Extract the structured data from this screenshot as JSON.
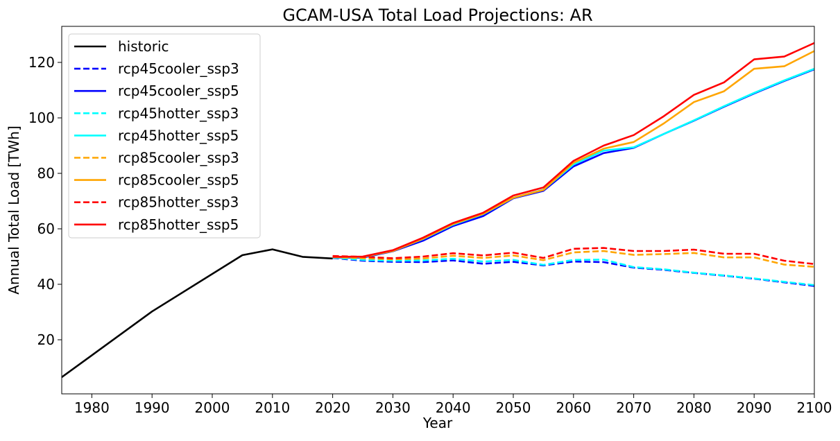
{
  "chart_data": {
    "type": "line",
    "title": "GCAM-USA Total Load Projections: AR",
    "xlabel": "Year",
    "ylabel": "Annual Total Load [TWh]",
    "xlim": [
      1975,
      2100
    ],
    "ylim": [
      0.5,
      133
    ],
    "xticks": [
      1980,
      1990,
      2000,
      2010,
      2020,
      2030,
      2040,
      2050,
      2060,
      2070,
      2080,
      2090,
      2100
    ],
    "yticks": [
      20,
      40,
      60,
      80,
      100,
      120
    ],
    "grid": false,
    "legend_position": "top-left",
    "series": [
      {
        "name": "historic",
        "color": "#000000",
        "dash": "solid",
        "x": [
          1975,
          1990,
          2005,
          2010,
          2015,
          2020
        ],
        "y": [
          6.5,
          30.2,
          50.5,
          52.6,
          49.9,
          49.3
        ]
      },
      {
        "name": "rcp45cooler_ssp3",
        "color": "#0000ff",
        "dash": "dashed",
        "x": [
          2020,
          2025,
          2030,
          2035,
          2040,
          2045,
          2050,
          2055,
          2060,
          2065,
          2070,
          2075,
          2080,
          2085,
          2090,
          2095,
          2100
        ],
        "y": [
          49.5,
          48.5,
          48.1,
          48.0,
          48.6,
          47.4,
          48.1,
          46.8,
          48.2,
          48.0,
          46.0,
          45.2,
          44.1,
          43.1,
          42.0,
          40.7,
          39.4
        ]
      },
      {
        "name": "rcp45cooler_ssp5",
        "color": "#0000ff",
        "dash": "solid",
        "x": [
          2020,
          2025,
          2030,
          2035,
          2040,
          2045,
          2050,
          2055,
          2060,
          2065,
          2070,
          2075,
          2080,
          2085,
          2090,
          2095,
          2100
        ],
        "y": [
          49.6,
          49.6,
          51.9,
          55.7,
          61.0,
          64.6,
          71.0,
          73.7,
          82.5,
          87.3,
          89.2,
          94.2,
          99.0,
          104.0,
          108.8,
          113.3,
          117.5
        ]
      },
      {
        "name": "rcp45hotter_ssp3",
        "color": "#00ffff",
        "dash": "dashed",
        "x": [
          2020,
          2025,
          2030,
          2035,
          2040,
          2045,
          2050,
          2055,
          2060,
          2065,
          2070,
          2075,
          2080,
          2085,
          2090,
          2095,
          2100
        ],
        "y": [
          49.6,
          48.8,
          48.5,
          48.6,
          49.2,
          48.2,
          48.8,
          47.0,
          48.8,
          48.9,
          46.2,
          45.4,
          44.2,
          43.2,
          42.1,
          40.9,
          39.7
        ]
      },
      {
        "name": "rcp45hotter_ssp5",
        "color": "#00ffff",
        "dash": "solid",
        "x": [
          2020,
          2025,
          2030,
          2035,
          2040,
          2045,
          2050,
          2055,
          2060,
          2065,
          2070,
          2075,
          2080,
          2085,
          2090,
          2095,
          2100
        ],
        "y": [
          49.7,
          49.8,
          52.1,
          56.3,
          61.5,
          65.3,
          71.2,
          74.1,
          83.2,
          88.2,
          89.4,
          94.2,
          99.1,
          104.2,
          109.0,
          113.5,
          117.7
        ]
      },
      {
        "name": "rcp85cooler_ssp3",
        "color": "#ffa500",
        "dash": "dashed",
        "x": [
          2020,
          2025,
          2030,
          2035,
          2040,
          2045,
          2050,
          2055,
          2060,
          2065,
          2070,
          2075,
          2080,
          2085,
          2090,
          2095,
          2100
        ],
        "y": [
          49.8,
          49.4,
          49.0,
          49.3,
          50.3,
          49.5,
          50.4,
          48.7,
          51.5,
          52.0,
          50.6,
          50.9,
          51.3,
          49.7,
          49.7,
          47.1,
          46.3
        ]
      },
      {
        "name": "rcp85cooler_ssp5",
        "color": "#ffa500",
        "dash": "solid",
        "x": [
          2020,
          2025,
          2030,
          2035,
          2040,
          2045,
          2050,
          2055,
          2060,
          2065,
          2070,
          2075,
          2080,
          2085,
          2090,
          2095,
          2100
        ],
        "y": [
          49.8,
          49.9,
          52.0,
          56.4,
          61.7,
          65.4,
          71.2,
          74.0,
          83.8,
          88.9,
          91.3,
          98.0,
          105.7,
          109.6,
          117.7,
          118.6,
          124.1
        ]
      },
      {
        "name": "rcp85hotter_ssp3",
        "color": "#ff0000",
        "dash": "dashed",
        "x": [
          2020,
          2025,
          2030,
          2035,
          2040,
          2045,
          2050,
          2055,
          2060,
          2065,
          2070,
          2075,
          2080,
          2085,
          2090,
          2095,
          2100
        ],
        "y": [
          50.2,
          49.9,
          49.4,
          50.0,
          51.2,
          50.4,
          51.4,
          49.5,
          52.8,
          53.1,
          52.0,
          52.0,
          52.5,
          51.0,
          51.0,
          48.5,
          47.3
        ]
      },
      {
        "name": "rcp85hotter_ssp5",
        "color": "#ff0000",
        "dash": "solid",
        "x": [
          2020,
          2025,
          2030,
          2035,
          2040,
          2045,
          2050,
          2055,
          2060,
          2065,
          2070,
          2075,
          2080,
          2085,
          2090,
          2095,
          2100
        ],
        "y": [
          49.9,
          50.0,
          52.3,
          56.8,
          62.1,
          65.8,
          72.0,
          74.9,
          84.5,
          90.0,
          93.8,
          100.6,
          108.3,
          112.8,
          121.1,
          122.1,
          127.0
        ]
      }
    ]
  }
}
